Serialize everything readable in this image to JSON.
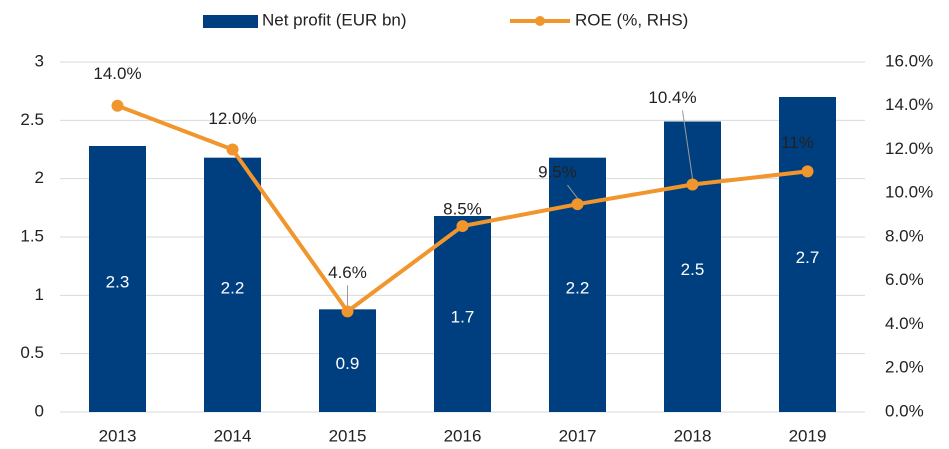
{
  "chart_data": {
    "type": "bar_line",
    "categories": [
      "2013",
      "2014",
      "2015",
      "2016",
      "2017",
      "2018",
      "2019"
    ],
    "series": [
      {
        "name": "Net profit (EUR bn)",
        "type": "bar",
        "color": "#003f7f",
        "values": [
          2.28,
          2.18,
          0.88,
          1.68,
          2.18,
          2.49,
          2.7
        ],
        "value_labels": [
          "2.3",
          "2.2",
          "0.9",
          "1.7",
          "2.2",
          "2.5",
          "2.7"
        ]
      },
      {
        "name": "ROE (%, RHS)",
        "type": "line",
        "axis": "y2",
        "color": "#f0962d",
        "values": [
          14,
          12,
          4.6,
          8.5,
          9.5,
          10.4,
          11
        ],
        "value_labels": [
          "14.0%",
          "12.0%",
          "4.6%",
          "8.5%",
          "9.5%",
          "10.4%",
          "11%"
        ]
      }
    ],
    "ylim": [
      0,
      3
    ],
    "yticks": [
      0,
      0.5,
      1,
      1.5,
      2,
      2.5,
      3
    ],
    "y2lim": [
      0,
      16
    ],
    "y2ticks": [
      {
        "value": 0,
        "label": "0.0%"
      },
      {
        "value": 2,
        "label": "2.0%"
      },
      {
        "value": 4,
        "label": "4.0%"
      },
      {
        "value": 6,
        "label": "6.0%"
      },
      {
        "value": 8,
        "label": "8.0%"
      },
      {
        "value": 10,
        "label": "10.0%"
      },
      {
        "value": 12,
        "label": "12.0%"
      },
      {
        "value": 14,
        "label": "14.0%"
      },
      {
        "value": 16,
        "label": "16.0%"
      }
    ],
    "grid": true,
    "legend": "top"
  }
}
